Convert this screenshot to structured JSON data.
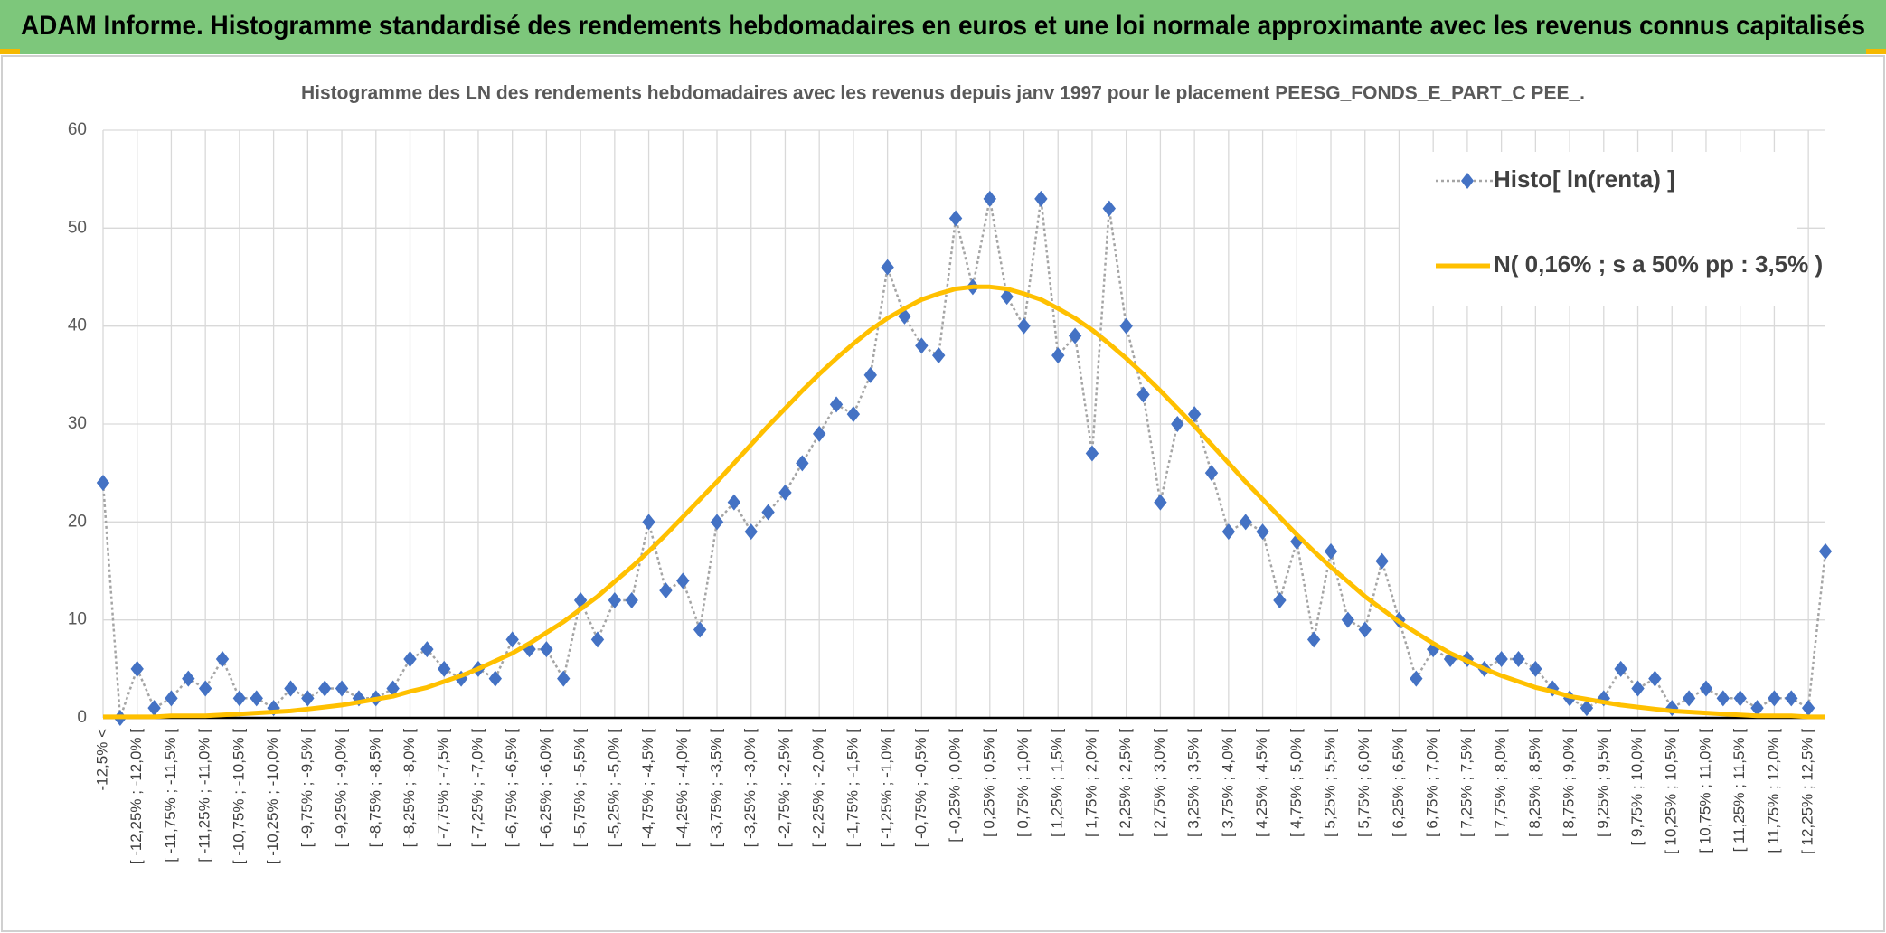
{
  "header": {
    "title": "ADAM Informe. Histogramme standardisé des rendements hebdomadaires en euros et une loi normale approximante avec les revenus connus capitalisés"
  },
  "chart_data": {
    "type": "line",
    "title": "Histogramme des LN des rendements hebdomadaires avec les revenus depuis janv 1997 pour le placement PEESG_FONDS_E_PART_C PEE_.",
    "categories": [
      "-12,5% <",
      null,
      "[ -12,25% ; -12,0% [",
      null,
      "[ -11,75% ; -11,5% [",
      null,
      "[ -11,25% ; -11,0% [",
      null,
      "[ -10,75% ; -10,5% [",
      null,
      "[ -10,25% ; -10,0% [",
      null,
      "[ -9,75% ; -9,5% [",
      null,
      "[ -9,25% ; -9,0% [",
      null,
      "[ -8,75% ; -8,5% [",
      null,
      "[ -8,25% ; -8,0% [",
      null,
      "[ -7,75% ; -7,5% [",
      null,
      "[ -7,25% ; -7,0% [",
      null,
      "[ -6,75% ; -6,5% [",
      null,
      "[ -6,25% ; -6,0% [",
      null,
      "[ -5,75% ; -5,5% [",
      null,
      "[ -5,25% ; -5,0% [",
      null,
      "[ -4,75% ; -4,5% [",
      null,
      "[ -4,25% ; -4,0% [",
      null,
      "[ -3,75% ; -3,5% [",
      null,
      "[ -3,25% ; -3,0% [",
      null,
      "[ -2,75% ; -2,5% [",
      null,
      "[ -2,25% ; -2,0% [",
      null,
      "[ -1,75% ; -1,5% [",
      null,
      "[ -1,25% ; -1,0% [",
      null,
      "[ -0,75% ; -0,5% [",
      null,
      "[ -0,25% ; 0,0% [",
      null,
      "[ 0,25% ; 0,5% [",
      null,
      "[ 0,75% ; 1,0% [",
      null,
      "[ 1,25% ; 1,5% [",
      null,
      "[ 1,75% ; 2,0% [",
      null,
      "[ 2,25% ; 2,5% [",
      null,
      "[ 2,75% ; 3,0% [",
      null,
      "[ 3,25% ; 3,5% [",
      null,
      "[ 3,75% ; 4,0% [",
      null,
      "[ 4,25% ; 4,5% [",
      null,
      "[ 4,75% ; 5,0% [",
      null,
      "[ 5,25% ; 5,5% [",
      null,
      "[ 5,75% ; 6,0% [",
      null,
      "[ 6,25% ; 6,5% [",
      null,
      "[ 6,75% ; 7,0% [",
      null,
      "[ 7,25% ; 7,5% [",
      null,
      "[ 7,75% ; 8,0% [",
      null,
      "[ 8,25% ; 8,5% [",
      null,
      "[ 8,75% ; 9,0% [",
      null,
      "[ 9,25% ; 9,5% [",
      null,
      "[ 9,75% ; 10,0% [",
      null,
      "[ 10,25% ; 10,5% [",
      null,
      "[ 10,75% ; 11,0% [",
      null,
      "[ 11,25% ; 11,5% [",
      null,
      "[ 11,75% ; 12,0% [",
      null,
      "[ 12,25% ; 12,5% [",
      null
    ],
    "series": [
      {
        "name": "Histo[ ln(renta) ]",
        "color": "#4472c4",
        "line_color": "#a5a5a5",
        "values": [
          24,
          0,
          5,
          1,
          2,
          4,
          3,
          6,
          2,
          2,
          1,
          3,
          2,
          3,
          3,
          2,
          2,
          3,
          6,
          7,
          5,
          4,
          5,
          4,
          8,
          7,
          7,
          4,
          12,
          8,
          12,
          12,
          20,
          13,
          14,
          9,
          20,
          22,
          19,
          21,
          23,
          26,
          29,
          32,
          31,
          35,
          46,
          41,
          38,
          37,
          51,
          44,
          53,
          43,
          40,
          53,
          37,
          39,
          27,
          52,
          40,
          33,
          22,
          30,
          31,
          25,
          19,
          20,
          19,
          12,
          18,
          8,
          17,
          10,
          9,
          16,
          10,
          4,
          7,
          6,
          6,
          5,
          6,
          6,
          5,
          3,
          2,
          1,
          2,
          5,
          3,
          4,
          1,
          2,
          3,
          2,
          2,
          1,
          2,
          2,
          1,
          17
        ]
      },
      {
        "name": "N( 0,16% ; s a 50% pp : 3,5% )",
        "color": "#ffc000",
        "values": [
          0.1,
          0.1,
          0.1,
          0.1,
          0.2,
          0.2,
          0.2,
          0.3,
          0.4,
          0.5,
          0.6,
          0.7,
          0.9,
          1.1,
          1.3,
          1.6,
          1.9,
          2.2,
          2.7,
          3.1,
          3.7,
          4.3,
          5.0,
          5.8,
          6.6,
          7.6,
          8.7,
          9.8,
          11.1,
          12.4,
          13.9,
          15.4,
          17.0,
          18.7,
          20.5,
          22.3,
          24.1,
          26.0,
          27.9,
          29.8,
          31.6,
          33.4,
          35.1,
          36.7,
          38.2,
          39.6,
          40.8,
          41.8,
          42.7,
          43.3,
          43.8,
          44.0,
          44.0,
          43.8,
          43.3,
          42.7,
          41.8,
          40.8,
          39.6,
          38.2,
          36.7,
          35.1,
          33.4,
          31.6,
          29.8,
          27.9,
          26.0,
          24.1,
          22.3,
          20.5,
          18.7,
          17.0,
          15.4,
          13.9,
          12.4,
          11.1,
          9.8,
          8.7,
          7.6,
          6.6,
          5.8,
          5.0,
          4.3,
          3.7,
          3.1,
          2.7,
          2.2,
          1.9,
          1.6,
          1.3,
          1.1,
          0.9,
          0.7,
          0.6,
          0.5,
          0.4,
          0.3,
          0.2,
          0.2,
          0.2,
          0.1,
          0.1
        ]
      }
    ],
    "ylim": [
      0,
      60
    ],
    "yticks": [
      0,
      10,
      20,
      30,
      40,
      50,
      60
    ],
    "grid": true,
    "legend": "top-right"
  }
}
